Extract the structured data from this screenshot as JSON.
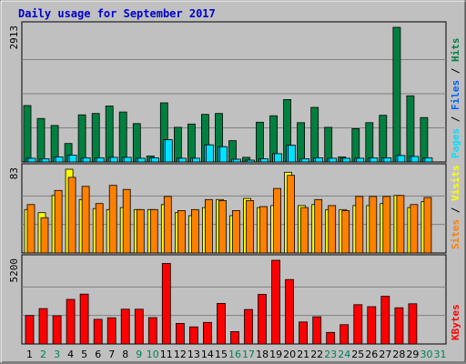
{
  "chart_data": {
    "type": "bar",
    "title": "Daily usage for September 2017",
    "categories": [
      "1",
      "2",
      "3",
      "4",
      "5",
      "6",
      "7",
      "8",
      "9",
      "10",
      "11",
      "12",
      "13",
      "14",
      "15",
      "16",
      "17",
      "18",
      "19",
      "20",
      "21",
      "22",
      "23",
      "24",
      "25",
      "26",
      "27",
      "28",
      "29",
      "30",
      "31"
    ],
    "weekend_days": [
      "2",
      "3",
      "9",
      "10",
      "16",
      "17",
      "23",
      "24",
      "30",
      "31"
    ],
    "colors": {
      "background": "#c0c0c0",
      "frame": "#c0c0c0",
      "title": "#0000cc",
      "hits": "#008040",
      "files": "#00c0ff",
      "pages": "#00e0ff",
      "visits": "#ffff00",
      "sites": "#ff8000",
      "kbytes": "#ff0000",
      "weekday_label": "#000000",
      "weekend_label": "#00805c"
    },
    "panels": [
      {
        "id": "hits-files-pages",
        "ymax": 2913,
        "ymax_label": "2913",
        "legend": [
          {
            "text": "Pages",
            "color": "#00e0ff"
          },
          {
            "text": " / ",
            "color": "#000000"
          },
          {
            "text": "Files",
            "color": "#0060ff"
          },
          {
            "text": " / ",
            "color": "#000000"
          },
          {
            "text": "Hits",
            "color": "#008040"
          }
        ],
        "series": [
          {
            "name": "Hits",
            "color": "#008040",
            "values": [
              1220,
              940,
              790,
              400,
              1020,
              1050,
              1210,
              1080,
              830,
              130,
              1280,
              750,
              820,
              1030,
              1050,
              460,
              100,
              860,
              1000,
              1350,
              850,
              1180,
              750,
              110,
              720,
              850,
              1010,
              2913,
              1430,
              960,
              0
            ]
          },
          {
            "name": "Files",
            "color": "#00c0ff",
            "values": [
              80,
              70,
              110,
              150,
              90,
              90,
              100,
              100,
              80,
              90,
              480,
              80,
              80,
              370,
              330,
              60,
              40,
              70,
              180,
              360,
              70,
              90,
              80,
              80,
              80,
              90,
              90,
              140,
              120,
              90,
              0
            ]
          },
          {
            "name": "Pages",
            "color": "#00e0ff",
            "values": [
              80,
              70,
              110,
              150,
              90,
              90,
              100,
              100,
              80,
              90,
              480,
              80,
              80,
              370,
              330,
              60,
              40,
              70,
              180,
              360,
              70,
              90,
              80,
              80,
              80,
              90,
              90,
              140,
              120,
              90,
              0
            ]
          }
        ]
      },
      {
        "id": "visits-sites",
        "ymax": 83,
        "ymax_label": "83",
        "legend": [
          {
            "text": "Sites",
            "color": "#ff8000"
          },
          {
            "text": " / ",
            "color": "#000000"
          },
          {
            "text": "Visits",
            "color": "#ffff00"
          }
        ],
        "series": [
          {
            "name": "Visits",
            "color": "#ffff00",
            "values": [
              43,
              40,
              57,
              83,
              53,
              44,
              43,
              45,
              43,
              43,
              48,
              40,
              37,
              45,
              53,
              37,
              54,
              45,
              47,
              80,
              47,
              48,
              43,
              43,
              47,
              47,
              49,
              57,
              45,
              51,
              0
            ]
          },
          {
            "name": "Sites",
            "color": "#ff8000",
            "values": [
              48,
              35,
              62,
              75,
              66,
              49,
              67,
              63,
              43,
              43,
              56,
              42,
              43,
              53,
              52,
              42,
              52,
              46,
              64,
              77,
              45,
              53,
              47,
              42,
              56,
              56,
              56,
              57,
              48,
              55,
              0
            ]
          }
        ]
      },
      {
        "id": "kbytes",
        "ymax": 5200,
        "ymax_label": "5200",
        "legend": [
          {
            "text": "KBytes",
            "color": "#ff0000"
          }
        ],
        "series": [
          {
            "name": "KBytes",
            "color": "#ff0000",
            "values": [
              1770,
              2200,
              1750,
              2770,
              3100,
              1530,
              1630,
              2160,
              2160,
              1640,
              5000,
              1280,
              1060,
              1340,
              2520,
              770,
              2140,
              3080,
              5200,
              4000,
              1370,
              1690,
              720,
              1200,
              2440,
              2320,
              2960,
              2250,
              2500,
              0,
              0
            ]
          }
        ]
      }
    ]
  }
}
